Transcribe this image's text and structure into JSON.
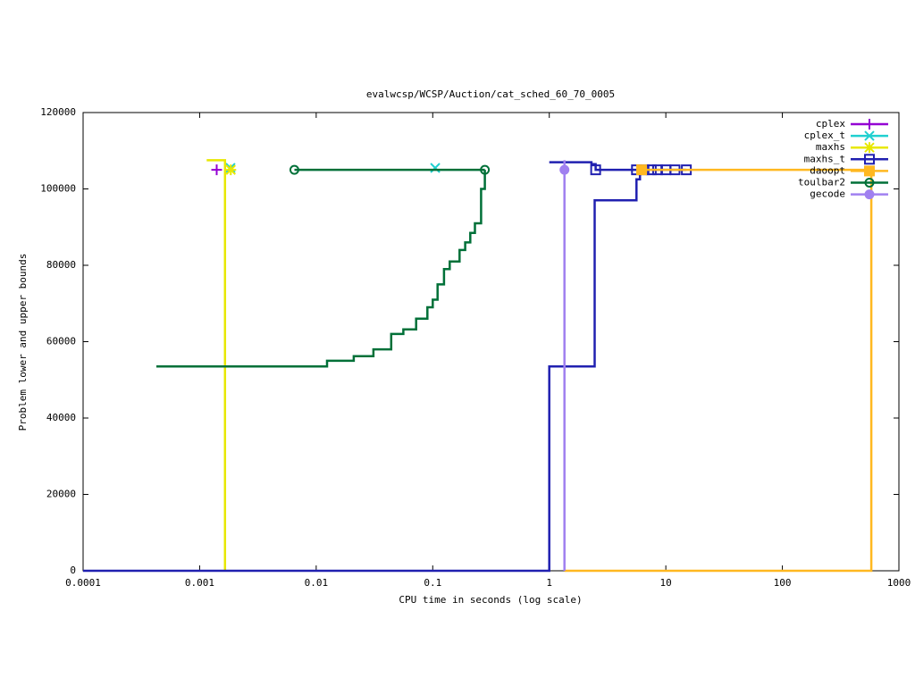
{
  "chart_data": {
    "type": "line",
    "title": "evalwcsp/WCSP/Auction/cat_sched_60_70_0005",
    "x_label": "CPU time in seconds (log scale)",
    "y_label": "Problem lower and upper bounds",
    "x_log": true,
    "xlim": [
      0.0001,
      1000
    ],
    "xticks": [
      0.0001,
      0.001,
      0.01,
      0.1,
      1,
      10,
      100,
      1000
    ],
    "ylim": [
      0,
      120000
    ],
    "yticks": [
      0,
      20000,
      40000,
      60000,
      80000,
      100000,
      120000
    ],
    "legend": "top-right",
    "series": [
      {
        "name": "cplex",
        "color": "#9400d3",
        "marker": "plus",
        "x": [],
        "values": [],
        "point_x": [
          0.0014
        ],
        "point_values": [
          105000
        ]
      },
      {
        "name": "cplex_t",
        "color": "#20d0d0",
        "marker": "cross",
        "x": [],
        "values": [],
        "point_x": [
          0.00184,
          0.105
        ],
        "point_values": [
          105500,
          105500
        ]
      },
      {
        "name": "maxhs",
        "color": "#e8e800",
        "marker": "star",
        "x": [
          0.00115,
          0.00165,
          0.00165
        ],
        "values": [
          107500,
          107500,
          0
        ],
        "point_x": [
          0.00185
        ],
        "point_values": [
          105000
        ]
      },
      {
        "name": "maxhs_t",
        "color": "#2020b0",
        "marker": "square",
        "x": [
          0.0001,
          1,
          1,
          2.45,
          2.45,
          5.6,
          5.6,
          6,
          6,
          null,
          1,
          2.3,
          2.3,
          2.5,
          2.5,
          15
        ],
        "values": [
          0,
          0,
          53500,
          53500,
          97000,
          97000,
          102500,
          102500,
          105000,
          null,
          107000,
          107000,
          106500,
          106500,
          105000,
          105000
        ],
        "point_x": [
          2.5,
          5.6,
          6.5,
          7.5,
          8.5,
          10,
          12,
          15
        ],
        "point_values": [
          105000,
          105000,
          105000,
          105000,
          105000,
          105000,
          105000,
          105000
        ]
      },
      {
        "name": "daoopt",
        "color": "#ffb820",
        "marker": "filled-square",
        "x": [
          1.35,
          580,
          580,
          6.2
        ],
        "values": [
          0,
          0,
          105000,
          105000
        ],
        "point_x": [
          6.2
        ],
        "point_values": [
          105000
        ]
      },
      {
        "name": "toulbar2",
        "color": "#007038",
        "marker": "circle",
        "x": [
          0.000425,
          0.0124,
          0.0124,
          0.021,
          0.021,
          0.031,
          0.031,
          0.044,
          0.044,
          0.056,
          0.056,
          0.072,
          0.072,
          0.09,
          0.09,
          0.1,
          0.1,
          0.11,
          0.11,
          0.125,
          0.125,
          0.14,
          0.14,
          0.17,
          0.17,
          0.19,
          0.19,
          0.21,
          0.21,
          0.23,
          0.23,
          0.26,
          0.26,
          0.28,
          0.28,
          null,
          0.0065,
          0.28
        ],
        "values": [
          53500,
          53500,
          55000,
          55000,
          56200,
          56200,
          58000,
          58000,
          62000,
          62000,
          63200,
          63200,
          66000,
          66000,
          69000,
          69000,
          71000,
          71000,
          75000,
          75000,
          79000,
          79000,
          81000,
          81000,
          84000,
          84000,
          86000,
          86000,
          88500,
          88500,
          91000,
          91000,
          100000,
          100000,
          105000,
          null,
          105000,
          105000
        ],
        "point_x": [
          0.0065,
          0.28
        ],
        "point_values": [
          105000,
          105000
        ]
      },
      {
        "name": "gecode",
        "color": "#a080f0",
        "marker": "filled-circle",
        "x": [
          1.35,
          1.35
        ],
        "values": [
          0,
          107500
        ],
        "point_x": [
          1.35
        ],
        "point_values": [
          105000
        ]
      }
    ]
  }
}
